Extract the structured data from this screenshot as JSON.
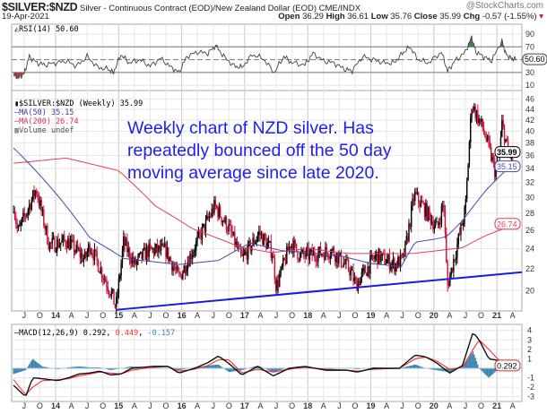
{
  "header": {
    "symbol": "$SILVER:$NZD",
    "description": "Silver - Continuous Contract (EOD)/New Zealand Dollar (EOD)",
    "exchange": "CME/INDX",
    "watermark": "@StockCharts.com",
    "date": "19-Apr-2021",
    "open_label": "Open",
    "open": "36.29",
    "high_label": "High",
    "high": "36.61",
    "low_label": "Low",
    "low": "35.76",
    "close_label": "Close",
    "close": "35.99",
    "chg_label": "Chg",
    "chg": "-0.57 (-1.55%)",
    "chg_icon": "down-triangle-icon"
  },
  "annotation": {
    "lines": [
      "Weekly chart of NZD silver. Has",
      "repeatedly bounced off the 50 day",
      "moving average since late 2020."
    ],
    "color": "#1f1fee"
  },
  "colors": {
    "up": "#000000",
    "down": "#d0103a",
    "ma50": "#4848a8",
    "ma200": "#e0405a",
    "trendline": "#1a1ae6",
    "macd": "#111111",
    "signal": "#ff3030",
    "histogram": "#3d85b0",
    "rsi_line": "#444444",
    "rsi_over": "#4d7a4d",
    "rsi_under": "#b04040"
  },
  "chart_data": [
    {
      "type": "line",
      "title": "RSI(14) 50.60",
      "legend": "RSI(14) 50.60",
      "ylim": [
        0,
        100
      ],
      "yticks": [
        "90",
        "70",
        "30",
        "10"
      ],
      "reference_lines": [
        70,
        50,
        30
      ],
      "current_label": "50.60",
      "points": [
        [
          "2013-05-01",
          25
        ],
        [
          "2013-06-01",
          22
        ],
        [
          "2013-07-01",
          28
        ],
        [
          "2013-08-01",
          55
        ],
        [
          "2013-09-15",
          45
        ],
        [
          "2013-11-01",
          42
        ],
        [
          "2014-01-01",
          45
        ],
        [
          "2014-03-01",
          48
        ],
        [
          "2014-05-01",
          40
        ],
        [
          "2014-07-01",
          55
        ],
        [
          "2014-09-01",
          38
        ],
        [
          "2014-11-01",
          35
        ],
        [
          "2014-12-01",
          30
        ],
        [
          "2015-01-15",
          58
        ],
        [
          "2015-03-01",
          45
        ],
        [
          "2015-05-01",
          50
        ],
        [
          "2015-07-01",
          40
        ],
        [
          "2015-09-01",
          52
        ],
        [
          "2015-11-01",
          38
        ],
        [
          "2015-12-15",
          30
        ],
        [
          "2016-02-01",
          55
        ],
        [
          "2016-04-01",
          62
        ],
        [
          "2016-06-01",
          60
        ],
        [
          "2016-07-15",
          72
        ],
        [
          "2016-09-01",
          55
        ],
        [
          "2016-11-01",
          40
        ],
        [
          "2016-12-15",
          38
        ],
        [
          "2017-02-15",
          58
        ],
        [
          "2017-04-15",
          52
        ],
        [
          "2017-06-20",
          30
        ],
        [
          "2017-08-15",
          55
        ],
        [
          "2017-10-01",
          45
        ],
        [
          "2017-12-15",
          42
        ],
        [
          "2018-02-01",
          60
        ],
        [
          "2018-04-01",
          48
        ],
        [
          "2018-06-01",
          45
        ],
        [
          "2018-08-01",
          35
        ],
        [
          "2018-09-15",
          33
        ],
        [
          "2018-11-15",
          55
        ],
        [
          "2019-01-15",
          50
        ],
        [
          "2019-03-15",
          45
        ],
        [
          "2019-05-15",
          45
        ],
        [
          "2019-07-01",
          60
        ],
        [
          "2019-08-15",
          70
        ],
        [
          "2019-10-01",
          50
        ],
        [
          "2019-12-01",
          45
        ],
        [
          "2020-02-15",
          62
        ],
        [
          "2020-03-20",
          32
        ],
        [
          "2020-05-01",
          48
        ],
        [
          "2020-07-01",
          62
        ],
        [
          "2020-08-07",
          85
        ],
        [
          "2020-09-01",
          62
        ],
        [
          "2020-10-15",
          55
        ],
        [
          "2020-12-01",
          48
        ],
        [
          "2021-01-30",
          80
        ],
        [
          "2021-02-20",
          60
        ],
        [
          "2021-03-20",
          52
        ],
        [
          "2021-04-19",
          50.6
        ]
      ]
    },
    {
      "type": "candlestick",
      "legend_price": "$SILVER:$NZD (Weekly) 35.99",
      "legend_ma50": "MA(50) 35.15",
      "legend_ma200": "MA(200) 26.74",
      "legend_volume": "Volume undef",
      "yscale": "log",
      "ylim": [
        17.5,
        47
      ],
      "yticks": [
        "46",
        "44",
        "42",
        "40",
        "38",
        "36",
        "34",
        "32",
        "30",
        "28",
        "26",
        "24",
        "22",
        "20"
      ],
      "last_labels": {
        "close": "35.99",
        "ma50": "35.15",
        "ma200": "26.74"
      },
      "price_points": [
        [
          "2013-05-01",
          29.2
        ],
        [
          "2013-05-25",
          25.7
        ],
        [
          "2013-09-10",
          31.1
        ],
        [
          "2013-11-25",
          24.4
        ],
        [
          "2014-03-05",
          24.8
        ],
        [
          "2014-06-20",
          22.9
        ],
        [
          "2014-07-15",
          24.4
        ],
        [
          "2014-11-25",
          19.6
        ],
        [
          "2014-12-15",
          18.5
        ],
        [
          "2015-01-30",
          24.7
        ],
        [
          "2015-04-01",
          22.4
        ],
        [
          "2015-06-20",
          23.8
        ],
        [
          "2015-10-01",
          23.8
        ],
        [
          "2015-12-15",
          21.1
        ],
        [
          "2016-03-05",
          23.8
        ],
        [
          "2016-07-10",
          28.9
        ],
        [
          "2016-10-01",
          26.2
        ],
        [
          "2016-12-15",
          22.9
        ],
        [
          "2017-03-25",
          25.7
        ],
        [
          "2017-06-10",
          23.6
        ],
        [
          "2017-07-01",
          20.3
        ],
        [
          "2017-09-25",
          24.7
        ],
        [
          "2017-11-15",
          23.3
        ],
        [
          "2018-01-10",
          23.3
        ],
        [
          "2018-05-20",
          23.8
        ],
        [
          "2018-09-01",
          21.9
        ],
        [
          "2018-10-05",
          20.5
        ],
        [
          "2019-02-01",
          23.3
        ],
        [
          "2019-05-20",
          22.4
        ],
        [
          "2019-07-05",
          22.9
        ],
        [
          "2019-07-25",
          24.7
        ],
        [
          "2019-09-10",
          30.4
        ],
        [
          "2019-12-01",
          27.8
        ],
        [
          "2020-01-20",
          26.2
        ],
        [
          "2020-02-28",
          29.4
        ],
        [
          "2020-03-18",
          20.3
        ],
        [
          "2020-05-15",
          24.4
        ],
        [
          "2020-07-01",
          28.4
        ],
        [
          "2020-08-07",
          45.1
        ],
        [
          "2020-10-15",
          40.2
        ],
        [
          "2020-11-15",
          37.2
        ],
        [
          "2020-12-20",
          33.7
        ],
        [
          "2021-01-20",
          37.2
        ],
        [
          "2021-02-01",
          41.5
        ],
        [
          "2021-03-05",
          36.4
        ],
        [
          "2021-04-19",
          35.99
        ]
      ],
      "ma50_points": [
        [
          "2013-05-01",
          37.2
        ],
        [
          "2014-07-15",
          25.2
        ],
        [
          "2015-02-01",
          23.0
        ],
        [
          "2015-12-15",
          22.4
        ],
        [
          "2016-08-01",
          22.8
        ],
        [
          "2017-02-01",
          24.6
        ],
        [
          "2017-08-01",
          23.8
        ],
        [
          "2018-01-01",
          23.6
        ],
        [
          "2018-07-01",
          23.3
        ],
        [
          "2019-01-01",
          22.5
        ],
        [
          "2019-06-25",
          22.2
        ],
        [
          "2019-09-15",
          24.7
        ],
        [
          "2020-01-01",
          25.0
        ],
        [
          "2020-03-15",
          25.3
        ],
        [
          "2020-06-15",
          27.1
        ],
        [
          "2020-11-01",
          31.0
        ],
        [
          "2021-04-19",
          35.15
        ]
      ],
      "ma200_points": [
        [
          "2013-05-01",
          34.8
        ],
        [
          "2014-03-01",
          35.6
        ],
        [
          "2015-01-01",
          33.7
        ],
        [
          "2015-08-01",
          28.9
        ],
        [
          "2016-03-01",
          26.2
        ],
        [
          "2016-12-01",
          24.2
        ],
        [
          "2017-06-01",
          23.6
        ],
        [
          "2018-01-01",
          24.0
        ],
        [
          "2018-09-01",
          23.5
        ],
        [
          "2019-09-01",
          23.5
        ],
        [
          "2020-06-15",
          24.1
        ],
        [
          "2020-10-15",
          25.3
        ],
        [
          "2021-04-19",
          26.74
        ]
      ],
      "trendline": [
        [
          "2014-12-20",
          18.4
        ],
        [
          "2021-06-15",
          21.7
        ]
      ]
    },
    {
      "type": "line",
      "legend": "MACD(12,26,9)",
      "legend_values": [
        "0.292",
        "0.449",
        "-0.157"
      ],
      "ylim": [
        -3.4,
        4.4
      ],
      "yticks": [
        "4",
        "3",
        "2",
        "1",
        "-1",
        "-2",
        "-3"
      ],
      "series_points": [
        [
          "2013-05-01",
          -1.8,
          -1.2
        ],
        [
          "2013-07-10",
          -3.0,
          -2.8
        ],
        [
          "2013-08-20",
          -1.0,
          -2.0
        ],
        [
          "2013-10-15",
          -1.1,
          -1.3
        ],
        [
          "2014-01-15",
          -1.3,
          -1.2
        ],
        [
          "2014-03-15",
          -1.0,
          -1.1
        ],
        [
          "2014-05-15",
          -0.6,
          -0.8
        ],
        [
          "2014-07-15",
          -0.5,
          -0.6
        ],
        [
          "2014-09-15",
          -0.3,
          -0.4
        ],
        [
          "2014-11-15",
          -0.7,
          -0.5
        ],
        [
          "2015-01-15",
          -0.6,
          -0.6
        ],
        [
          "2015-03-15",
          0.0,
          -0.2
        ],
        [
          "2015-07-15",
          0.2,
          0.1
        ],
        [
          "2015-10-15",
          0.2,
          0.2
        ],
        [
          "2015-12-15",
          -0.5,
          -0.3
        ],
        [
          "2016-03-15",
          0.0,
          -0.1
        ],
        [
          "2016-06-01",
          0.6,
          0.3
        ],
        [
          "2016-08-01",
          1.3,
          0.9
        ],
        [
          "2016-10-01",
          0.5,
          0.9
        ],
        [
          "2016-12-15",
          -0.7,
          -0.5
        ],
        [
          "2017-03-15",
          0.2,
          -0.1
        ],
        [
          "2017-06-15",
          -0.8,
          -0.4
        ],
        [
          "2017-09-15",
          0.0,
          -0.1
        ],
        [
          "2017-12-15",
          0.2,
          0.1
        ],
        [
          "2018-04-15",
          -0.2,
          -0.1
        ],
        [
          "2018-08-15",
          -0.2,
          -0.2
        ],
        [
          "2018-10-15",
          -0.4,
          -0.3
        ],
        [
          "2019-01-15",
          0.0,
          -0.1
        ],
        [
          "2019-06-15",
          0.0,
          0.0
        ],
        [
          "2019-09-15",
          1.4,
          1.0
        ],
        [
          "2019-11-15",
          1.2,
          1.2
        ],
        [
          "2020-01-15",
          0.6,
          0.8
        ],
        [
          "2020-04-01",
          -0.5,
          -0.1
        ],
        [
          "2020-06-15",
          0.3,
          0.1
        ],
        [
          "2020-08-15",
          3.8,
          2.0
        ],
        [
          "2020-09-20",
          3.0,
          3.0
        ],
        [
          "2020-11-15",
          1.0,
          2.0
        ],
        [
          "2021-01-15",
          0.8,
          0.8
        ],
        [
          "2021-04-19",
          0.292,
          0.449
        ]
      ],
      "current_label": "0.292"
    }
  ],
  "x_axis": {
    "labels": [
      [
        "2013-07-01",
        "J"
      ],
      [
        "2013-10-01",
        "O"
      ],
      [
        "2014-01-01",
        "14"
      ],
      [
        "2014-04-01",
        "A"
      ],
      [
        "2014-07-01",
        "J"
      ],
      [
        "2014-10-01",
        "O"
      ],
      [
        "2015-01-01",
        "15"
      ],
      [
        "2015-04-01",
        "A"
      ],
      [
        "2015-07-01",
        "J"
      ],
      [
        "2015-10-01",
        "O"
      ],
      [
        "2016-01-01",
        "16"
      ],
      [
        "2016-04-01",
        "A"
      ],
      [
        "2016-07-01",
        "J"
      ],
      [
        "2016-10-01",
        "O"
      ],
      [
        "2017-01-01",
        "17"
      ],
      [
        "2017-04-01",
        "A"
      ],
      [
        "2017-07-01",
        "J"
      ],
      [
        "2017-10-01",
        "O"
      ],
      [
        "2018-01-01",
        "18"
      ],
      [
        "2018-04-01",
        "A"
      ],
      [
        "2018-07-01",
        "J"
      ],
      [
        "2018-10-01",
        "O"
      ],
      [
        "2019-01-01",
        "19"
      ],
      [
        "2019-04-01",
        "A"
      ],
      [
        "2019-07-01",
        "J"
      ],
      [
        "2019-10-01",
        "O"
      ],
      [
        "2020-01-01",
        "20"
      ],
      [
        "2020-04-01",
        "A"
      ],
      [
        "2020-07-01",
        "J"
      ],
      [
        "2020-10-01",
        "O"
      ],
      [
        "2021-01-01",
        "21"
      ],
      [
        "2021-04-01",
        "A"
      ]
    ]
  }
}
